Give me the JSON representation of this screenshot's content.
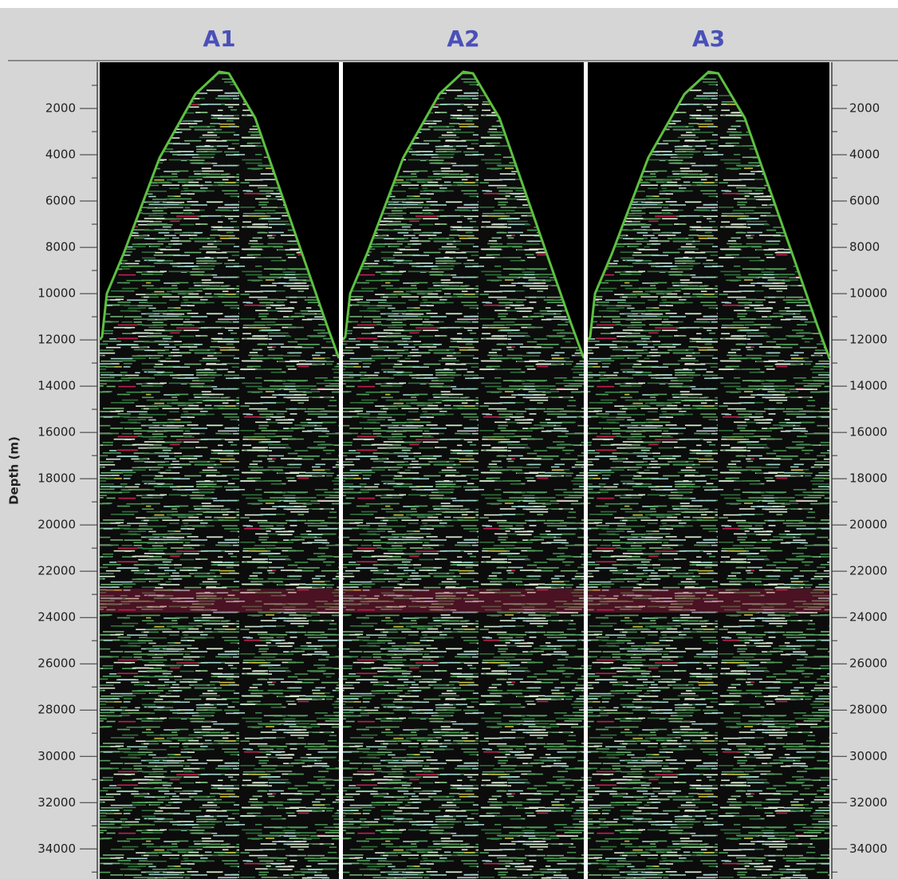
{
  "chart_data": {
    "type": "seismic",
    "panels": [
      "A1",
      "A2",
      "A3"
    ],
    "ylabel": "Depth (m)",
    "ylim": [
      0,
      35300
    ],
    "yticks": [
      2000,
      4000,
      6000,
      8000,
      10000,
      12000,
      14000,
      16000,
      18000,
      20000,
      22000,
      24000,
      26000,
      28000,
      30000,
      32000,
      34000
    ],
    "minor_yticks": [
      1000,
      3000,
      5000,
      7000,
      9000,
      11000,
      13000,
      15000,
      17000,
      19000,
      21000,
      23000,
      25000,
      27000,
      29000,
      31000,
      33000,
      35000
    ]
  }
}
